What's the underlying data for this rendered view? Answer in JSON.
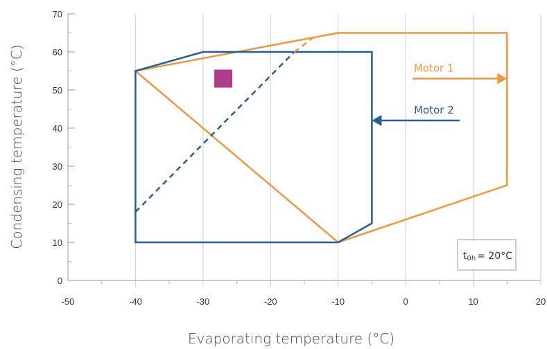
{
  "chart_data": {
    "type": "line",
    "title": "",
    "xlabel": "Evaporating temperature (°C)",
    "ylabel": "Condensing temperature (°C)",
    "xlim": [
      -50,
      20
    ],
    "ylim": [
      0,
      70
    ],
    "xticks": [
      -50,
      -40,
      -30,
      -20,
      -10,
      0,
      10,
      20
    ],
    "yticks": [
      0,
      10,
      20,
      30,
      40,
      50,
      60,
      70
    ],
    "x_tick_labels": [
      "-50",
      "-40",
      "-30",
      "-20",
      "-10",
      "0",
      "10",
      "20"
    ],
    "y_tick_labels": [
      "0",
      "10",
      "20",
      "30",
      "40",
      "50",
      "60",
      "70"
    ],
    "grid": "vertical",
    "series": [
      {
        "name": "Motor 1",
        "color": "#f0963c",
        "closed": true,
        "points": [
          [
            -40,
            55
          ],
          [
            -10,
            65
          ],
          [
            15,
            65
          ],
          [
            15,
            25
          ],
          [
            -10,
            10
          ]
        ]
      },
      {
        "name": "Motor 2",
        "color": "#1f5f9a",
        "closed": true,
        "points": [
          [
            -40,
            10
          ],
          [
            -40,
            55
          ],
          [
            -30,
            60
          ],
          [
            -5,
            60
          ],
          [
            -5,
            15
          ],
          [
            -10,
            10
          ]
        ]
      }
    ],
    "dashed_lines": [
      {
        "color": "#1f5f9a",
        "points": [
          [
            -40,
            18
          ],
          [
            -16.5,
            60
          ]
        ]
      },
      {
        "color": "#f0963c",
        "points": [
          [
            -16.5,
            60
          ],
          [
            -13.5,
            64
          ]
        ]
      }
    ],
    "marker": {
      "shape": "square",
      "color": "#b03a8c",
      "x": -27,
      "y": 53
    },
    "series_labels": [
      {
        "text": "Motor 1",
        "color": "#f0963c",
        "arrow_from": [
          1,
          53
        ],
        "arrow_to": [
          15,
          53
        ]
      },
      {
        "text": "Motor 2",
        "color": "#1f5f9a",
        "arrow_from": [
          8,
          42
        ],
        "arrow_to": [
          -5,
          42
        ]
      }
    ],
    "note": {
      "text": "= 20°C",
      "symbol": "t",
      "subscript": "0h"
    }
  }
}
